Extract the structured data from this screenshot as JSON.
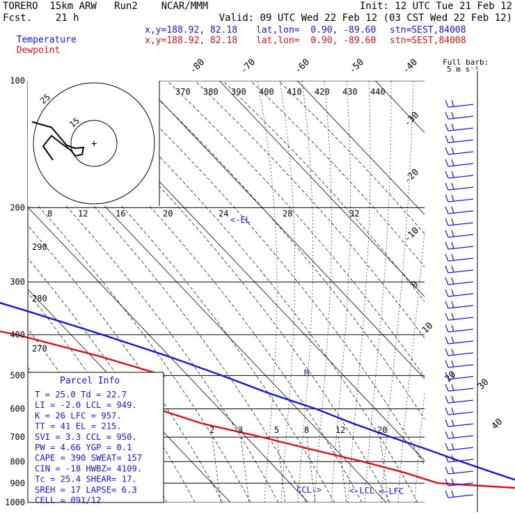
{
  "header": {
    "model": "TORERO  15km ARW   Run2    NCAR/MMM",
    "fcst": "Fcst.    21 h",
    "init": "Init: 12 UTC Tue 21 Feb 12",
    "valid": "Valid: 09 UTC Wed 22 Feb 12 (03 CST Wed 22 Feb 12)"
  },
  "rows": {
    "temperature": {
      "name": "Temperature",
      "xy": "x,y=188.92, 82.18",
      "latlon": "lat,lon=  0.90, -89.60",
      "stn": "stn=SEST,84008",
      "color": "#1515e0"
    },
    "dewpoint": {
      "name": "Dewpoint",
      "xy": "x,y=188.92, 82.18",
      "latlon": "lat,lon=  0.90, -89.60",
      "stn": "stn=SEST,84008",
      "color": "#e01010"
    }
  },
  "parcel_info": {
    "title": "Parcel Info",
    "rows": [
      "T  =   25.0 Td =  22.7",
      "LI =   -2.0 LCL =  949.",
      "K  =     26 LFC = 957.",
      "TT =     41 EL  =  215.",
      "SVI =   3.3 CCL =  950.",
      "PW =   4.66 YGP =   0.1",
      "CAPE =  390 SWEAT=  157",
      "CIN =   -18 HWBZ= 4109.",
      "Tc =   25.4 SHEAR=  17.",
      "SREH =   17 LAPSE=  6.3",
      "CELL = 091/12"
    ]
  },
  "wind_key": {
    "line1": "Full barb:",
    "line2": "5 m s⁻¹"
  },
  "hodograph": {
    "unit_label": "kts",
    "ring_labels": [
      "25",
      "15"
    ]
  },
  "annotations": {
    "el": "<-EL",
    "lcl": "<-LCL",
    "lfc": "<-LFC",
    "ccl": "CCL->",
    "mixing_ratio": "M"
  },
  "chart_data": {
    "type": "line",
    "title": "",
    "y_axis": {
      "label": "",
      "scale": "log",
      "range_hPa": [
        1000,
        100
      ],
      "ticks": [
        100,
        200,
        300,
        400,
        500,
        600,
        700,
        800,
        900,
        1000
      ]
    },
    "isotherm_labels_C": [
      -80,
      -70,
      -60,
      -50,
      -40,
      -30,
      -20,
      -10,
      0,
      10,
      20,
      30,
      40
    ],
    "theta_labels_K": [
      370,
      380,
      390,
      400,
      410,
      420,
      430,
      440
    ],
    "theta_e_labels_K": [
      290,
      280,
      270
    ],
    "theta_e_high_labels": [
      8,
      12,
      16,
      20,
      24,
      28,
      32
    ],
    "mixing_ratio_labels_gkg": [
      2,
      3,
      5,
      8,
      12,
      20
    ],
    "series": [
      {
        "name": "Temperature",
        "color": "#1515e0",
        "points": [
          [
            1000,
            26.0
          ],
          [
            975,
            24.4
          ],
          [
            950,
            23.2
          ],
          [
            925,
            22.0
          ],
          [
            900,
            20.2
          ],
          [
            850,
            17.4
          ],
          [
            800,
            14.6
          ],
          [
            750,
            11.8
          ],
          [
            700,
            8.6
          ],
          [
            650,
            5.4
          ],
          [
            600,
            2.4
          ],
          [
            550,
            -1.8
          ],
          [
            500,
            -5.6
          ],
          [
            450,
            -10.2
          ],
          [
            400,
            -16.0
          ],
          [
            350,
            -23.0
          ],
          [
            300,
            -31.6
          ],
          [
            250,
            -41.5
          ],
          [
            200,
            -54.0
          ],
          [
            175,
            -61.0
          ],
          [
            150,
            -67.0
          ],
          [
            125,
            -74.0
          ],
          [
            100,
            -80.0
          ]
        ]
      },
      {
        "name": "Dewpoint",
        "color": "#e01010",
        "points": [
          [
            1000,
            23.5
          ],
          [
            975,
            23.0
          ],
          [
            950,
            22.0
          ],
          [
            925,
            19.0
          ],
          [
            900,
            9.0
          ],
          [
            850,
            6.0
          ],
          [
            800,
            2.0
          ],
          [
            750,
            -3.0
          ],
          [
            700,
            -8.0
          ],
          [
            650,
            -14.0
          ],
          [
            600,
            -18.0
          ],
          [
            550,
            -17.0
          ],
          [
            500,
            -13.0
          ],
          [
            450,
            -19.0
          ],
          [
            400,
            -27.0
          ],
          [
            350,
            -40.0
          ],
          [
            300,
            -57.0
          ],
          [
            250,
            -68.0
          ],
          [
            200,
            -80.0
          ],
          [
            175,
            -88.0
          ],
          [
            150,
            -96.0
          ],
          [
            125,
            -102.0
          ],
          [
            100,
            -104.0
          ]
        ]
      }
    ]
  }
}
